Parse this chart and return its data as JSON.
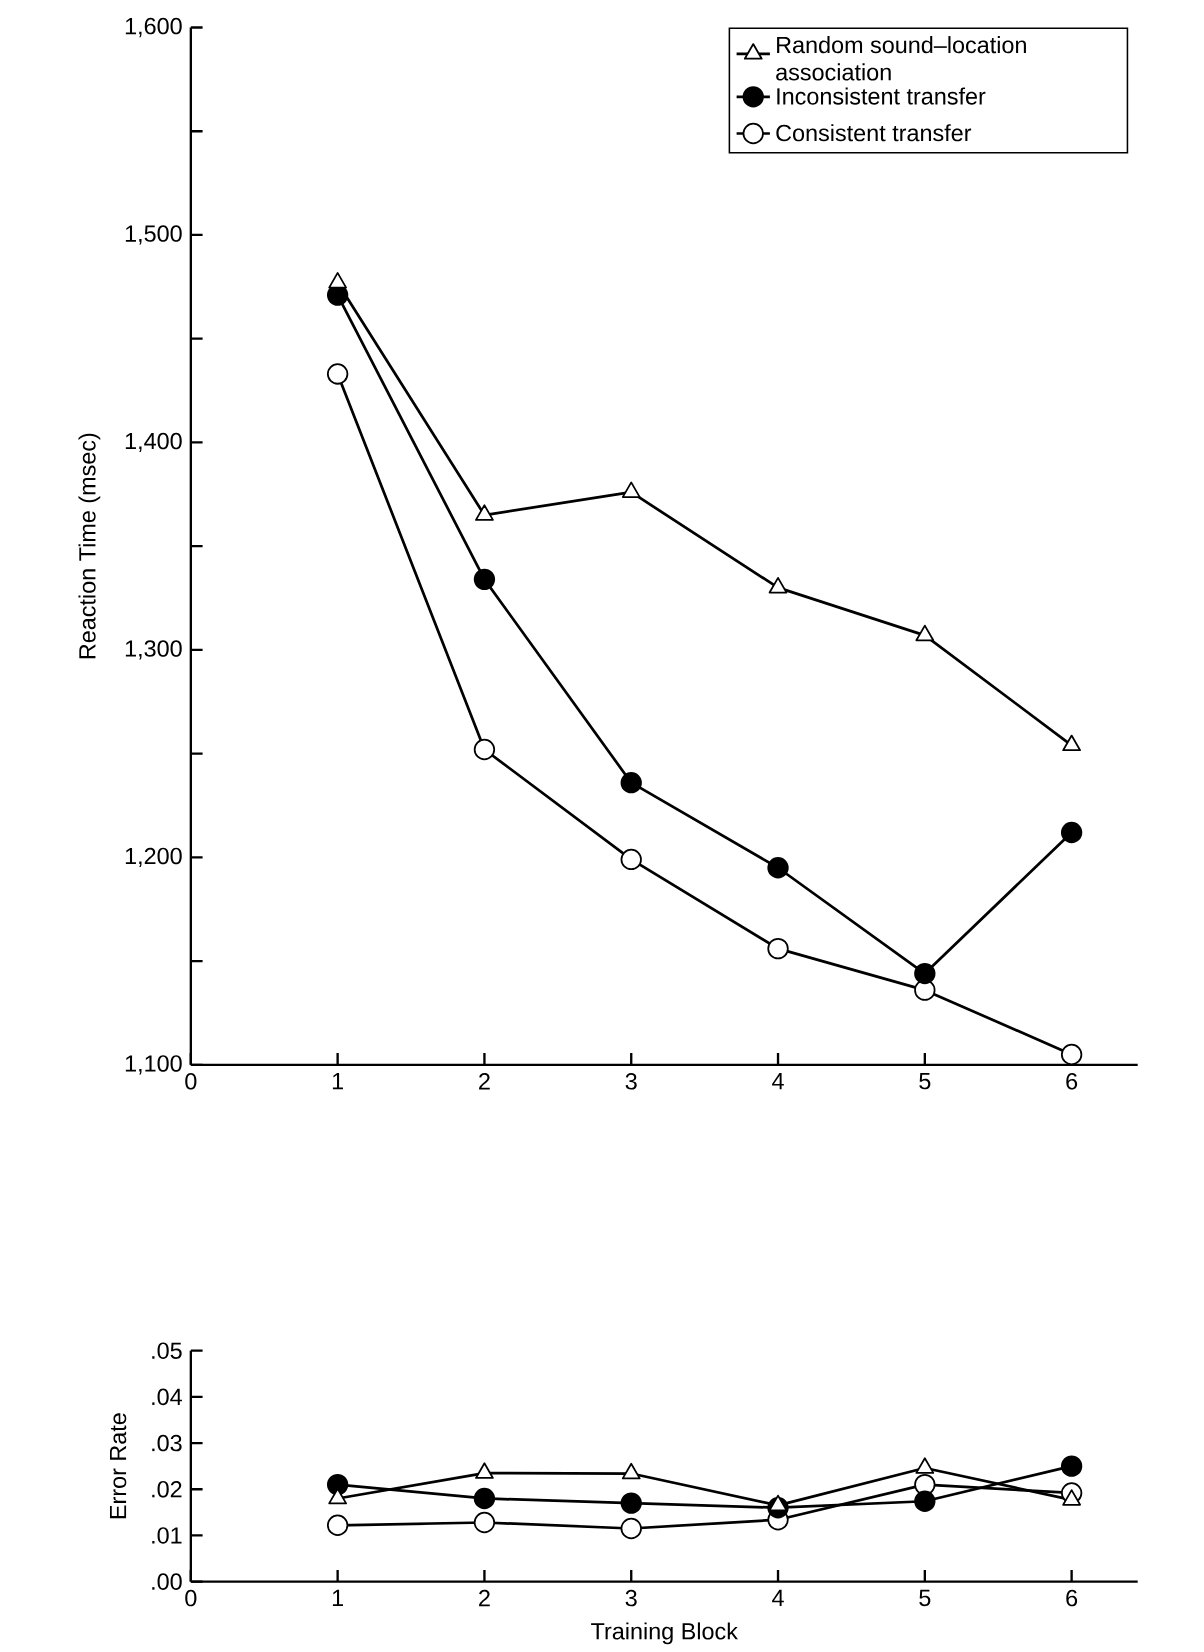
{
  "chart_data": [
    {
      "type": "line",
      "ylabel": "Reaction Time (msec)",
      "x": [
        1,
        2,
        3,
        4,
        5,
        6
      ],
      "xlim": [
        0,
        6.45
      ],
      "xticks": [
        0,
        1,
        2,
        3,
        4,
        5,
        6
      ],
      "ylim": [
        1100,
        1600
      ],
      "yticks": [
        {
          "value": 1100,
          "label": "1,100"
        },
        {
          "value": 1150,
          "label": null
        },
        {
          "value": 1200,
          "label": "1,200"
        },
        {
          "value": 1250,
          "label": null
        },
        {
          "value": 1300,
          "label": "1,300"
        },
        {
          "value": 1350,
          "label": null
        },
        {
          "value": 1400,
          "label": "1,400"
        },
        {
          "value": 1450,
          "label": null
        },
        {
          "value": 1500,
          "label": "1,500"
        },
        {
          "value": 1550,
          "label": null
        },
        {
          "value": 1600,
          "label": "1,600"
        }
      ],
      "legend": "top right",
      "series": [
        {
          "name": "Random sound–location association",
          "color": "#ffffff",
          "marker": "triangle",
          "values": [
            1477,
            1365,
            1376,
            1330,
            1307,
            1254
          ]
        },
        {
          "name": "Inconsistent transfer",
          "color": "#000000",
          "marker": "circle",
          "values": [
            1471,
            1334,
            1236,
            1195,
            1144,
            1212
          ]
        },
        {
          "name": "Consistent transfer",
          "color": "#ffffff",
          "marker": "circle",
          "values": [
            1433,
            1252,
            1199,
            1156,
            1136,
            1105
          ]
        }
      ]
    },
    {
      "type": "line",
      "ylabel": "Error Rate",
      "xlabel": "Training Block",
      "x": [
        1,
        2,
        3,
        4,
        5,
        6
      ],
      "xlim": [
        0,
        6.45
      ],
      "xticks": [
        0,
        1,
        2,
        3,
        4,
        5,
        6
      ],
      "ylim": [
        0,
        0.05
      ],
      "yticks": [
        {
          "value": 0,
          "label": ".00"
        },
        {
          "value": 0.01,
          "label": ".01"
        },
        {
          "value": 0.02,
          "label": ".02"
        },
        {
          "value": 0.03,
          "label": ".03"
        },
        {
          "value": 0.04,
          "label": ".04"
        },
        {
          "value": 0.05,
          "label": ".05"
        }
      ],
      "series": [
        {
          "color": "#ffffff",
          "marker": "triangle",
          "values": [
            0.018,
            0.0235,
            0.0234,
            0.0165,
            0.0246,
            0.0177
          ]
        },
        {
          "color": "#000000",
          "marker": "circle",
          "values": [
            0.021,
            0.018,
            0.017,
            0.016,
            0.0174,
            0.025
          ]
        },
        {
          "color": "#ffffff",
          "marker": "circle",
          "values": [
            0.0122,
            0.0128,
            0.0115,
            0.0134,
            0.021,
            0.0192
          ]
        }
      ]
    }
  ]
}
